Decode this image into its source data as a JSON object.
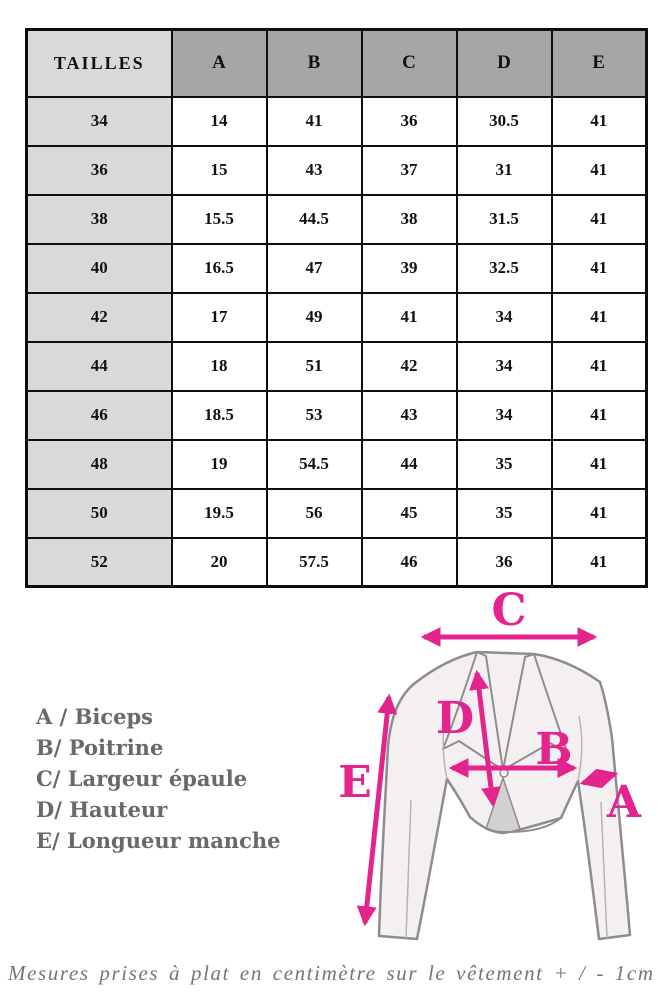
{
  "colors": {
    "accent": "#e2248c",
    "header_bg": "#a6a6a6",
    "label_col_bg": "#d9d9d9"
  },
  "table": {
    "header": [
      "TAILLES",
      "A",
      "B",
      "C",
      "D",
      "E"
    ],
    "rows": [
      [
        "34",
        "14",
        "41",
        "36",
        "30.5",
        "41"
      ],
      [
        "36",
        "15",
        "43",
        "37",
        "31",
        "41"
      ],
      [
        "38",
        "15.5",
        "44.5",
        "38",
        "31.5",
        "41"
      ],
      [
        "40",
        "16.5",
        "47",
        "39",
        "32.5",
        "41"
      ],
      [
        "42",
        "17",
        "49",
        "41",
        "34",
        "41"
      ],
      [
        "44",
        "18",
        "51",
        "42",
        "34",
        "41"
      ],
      [
        "46",
        "18.5",
        "53",
        "43",
        "34",
        "41"
      ],
      [
        "48",
        "19",
        "54.5",
        "44",
        "35",
        "41"
      ],
      [
        "50",
        "19.5",
        "56",
        "45",
        "35",
        "41"
      ],
      [
        "52",
        "20",
        "57.5",
        "46",
        "36",
        "41"
      ]
    ]
  },
  "legend": {
    "items": [
      "A / Biceps",
      "B/ Poitrine",
      "C/ Largeur épaule",
      "D/ Hauteur",
      "E/ Longueur manche"
    ]
  },
  "diagram": {
    "labels": {
      "a": "A",
      "b": "B",
      "c": "C",
      "d": "D",
      "e": "E"
    }
  },
  "footer": {
    "note": "Mesures prises à plat en centimètre sur le vêtement + / - 1cm"
  }
}
